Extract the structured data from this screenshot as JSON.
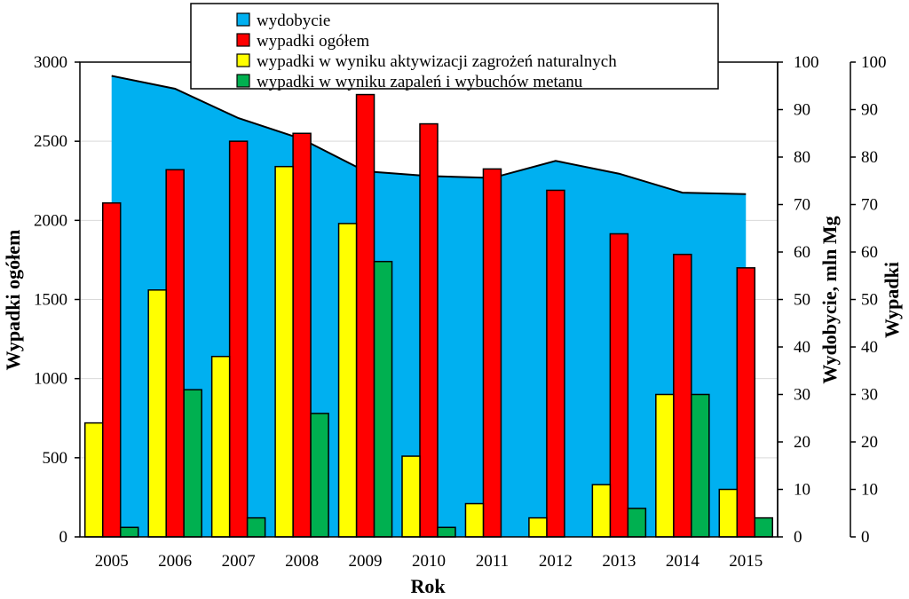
{
  "chart_data": {
    "type": "bar",
    "categories": [
      "2005",
      "2006",
      "2007",
      "2008",
      "2009",
      "2010",
      "2011",
      "2012",
      "2013",
      "2014",
      "2015"
    ],
    "area_series": {
      "name": "wydobycie",
      "axis": "right1",
      "color": "#00b0f0",
      "values": [
        97.1,
        94.4,
        88.2,
        83.8,
        77.0,
        76.0,
        75.6,
        79.2,
        76.5,
        72.5,
        72.2
      ]
    },
    "series": [
      {
        "name": "wypadki ogółem",
        "axis": "left",
        "color": "#ff0000",
        "values": [
          2110,
          2320,
          2500,
          2550,
          2795,
          2610,
          2325,
          2190,
          1915,
          1785,
          1700
        ]
      },
      {
        "name": "wypadki w wyniku aktywizacji zagrożeń naturalnych",
        "axis": "right2",
        "color": "#ffff00",
        "values": [
          24,
          52,
          38,
          78,
          66,
          17,
          7,
          4,
          11,
          30,
          10
        ]
      },
      {
        "name": "wypadki w wyniku zapaleń i wybuchów metanu",
        "axis": "right2",
        "color": "#00b050",
        "values": [
          2,
          31,
          4,
          26,
          58,
          2,
          0,
          0,
          6,
          30,
          4
        ]
      }
    ],
    "ylabel_left": "Wypadki ogółem",
    "ylabel_right1": "Wydobycie, mln Mg",
    "ylabel_right2": "Wypadki",
    "xlabel": "Rok",
    "ylim_left": [
      0,
      3000
    ],
    "yticks_left": [
      0,
      500,
      1000,
      1500,
      2000,
      2500,
      3000
    ],
    "ylim_right1": [
      0,
      100
    ],
    "yticks_right1": [
      0,
      10,
      20,
      30,
      40,
      50,
      60,
      70,
      80,
      90,
      100
    ],
    "ylim_right2": [
      0,
      100
    ],
    "yticks_right2": [
      0,
      10,
      20,
      30,
      40,
      50,
      60,
      70,
      80,
      90,
      100
    ],
    "legend_placement": "top-center",
    "grid": true
  }
}
